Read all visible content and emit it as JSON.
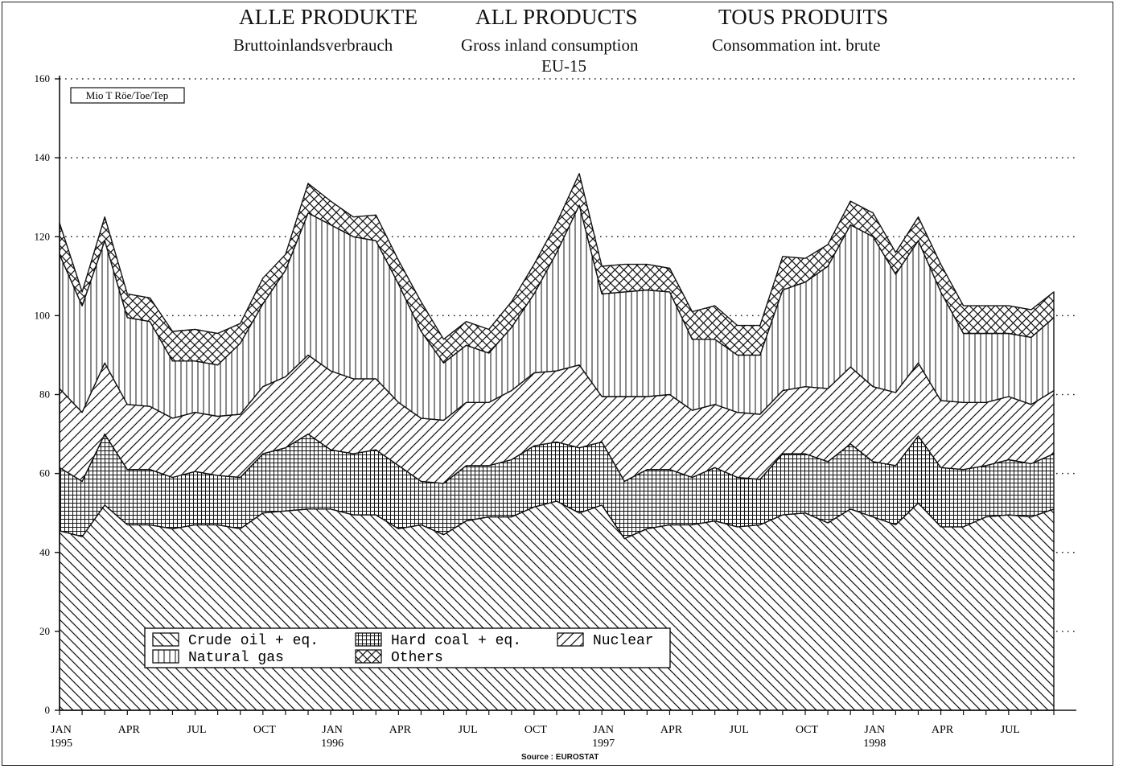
{
  "titles": {
    "de": "ALLE PRODUKTE",
    "en": "ALL PRODUCTS",
    "fr": "TOUS PRODUITS",
    "sub_de": "Bruttoinlandsverbrauch",
    "sub_en": "Gross inland consumption",
    "sub_fr": "Consommation int. brute",
    "region": "EU-15"
  },
  "source": "Source : EUROSTAT",
  "chart_data": {
    "type": "area",
    "stacked": true,
    "unit": "Mio T Röe/Toe/Tep",
    "ylim": [
      0,
      160
    ],
    "yticks": [
      0,
      20,
      40,
      60,
      80,
      100,
      120,
      140,
      160
    ],
    "ytick_labels": [
      "0",
      "20",
      "40",
      "60",
      "80",
      "100",
      "120",
      "140",
      "160"
    ],
    "grid": "dotted horizontal",
    "legend_position": "bottom-left",
    "x_range": [
      "1995-01",
      "1998-09"
    ],
    "x": [
      "1995-01",
      "1995-02",
      "1995-03",
      "1995-04",
      "1995-05",
      "1995-06",
      "1995-07",
      "1995-08",
      "1995-09",
      "1995-10",
      "1995-11",
      "1995-12",
      "1996-01",
      "1996-02",
      "1996-03",
      "1996-04",
      "1996-05",
      "1996-06",
      "1996-07",
      "1996-08",
      "1996-09",
      "1996-10",
      "1996-11",
      "1996-12",
      "1997-01",
      "1997-02",
      "1997-03",
      "1997-04",
      "1997-05",
      "1997-06",
      "1997-07",
      "1997-08",
      "1997-09",
      "1997-10",
      "1997-11",
      "1997-12",
      "1998-01",
      "1998-02",
      "1998-03",
      "1998-04",
      "1998-05",
      "1998-06",
      "1998-07",
      "1998-08",
      "1998-09"
    ],
    "xticks": [
      {
        "date": "1995-01",
        "month": "JAN",
        "year": "1995"
      },
      {
        "date": "1995-04",
        "month": "APR",
        "year": ""
      },
      {
        "date": "1995-07",
        "month": "JUL",
        "year": ""
      },
      {
        "date": "1995-10",
        "month": "OCT",
        "year": ""
      },
      {
        "date": "1996-01",
        "month": "JAN",
        "year": "1996"
      },
      {
        "date": "1996-04",
        "month": "APR",
        "year": ""
      },
      {
        "date": "1996-07",
        "month": "JUL",
        "year": ""
      },
      {
        "date": "1996-10",
        "month": "OCT",
        "year": ""
      },
      {
        "date": "1997-01",
        "month": "JAN",
        "year": "1997"
      },
      {
        "date": "1997-04",
        "month": "APR",
        "year": ""
      },
      {
        "date": "1997-07",
        "month": "JUL",
        "year": ""
      },
      {
        "date": "1997-10",
        "month": "OCT",
        "year": ""
      },
      {
        "date": "1998-01",
        "month": "JAN",
        "year": "1998"
      },
      {
        "date": "1998-04",
        "month": "APR",
        "year": ""
      },
      {
        "date": "1998-07",
        "month": "JUL",
        "year": ""
      }
    ],
    "series": [
      {
        "name": "Crude oil + eq.",
        "pattern": "hatch-back",
        "values": [
          45.5,
          44,
          52,
          47,
          47,
          46,
          47,
          47,
          46,
          50,
          50.5,
          51,
          51,
          49.5,
          49.5,
          46,
          47,
          44.5,
          48,
          49,
          49,
          51.5,
          53,
          50,
          52,
          43.5,
          46,
          47,
          47,
          48,
          46.5,
          47,
          49.5,
          50,
          47.5,
          51,
          49,
          47,
          52.5,
          46.5,
          46.5,
          49,
          49.5,
          49,
          51
        ]
      },
      {
        "name": "Hard coal + eq.",
        "pattern": "grid",
        "values": [
          16,
          14,
          18,
          14,
          14,
          13,
          13.5,
          12.5,
          13,
          15,
          16,
          19,
          15,
          15.5,
          16.5,
          16,
          11,
          13,
          14,
          13,
          14.5,
          15.5,
          15,
          16.5,
          16,
          14.5,
          15,
          14,
          12,
          13.5,
          12.5,
          11.5,
          15.5,
          15,
          15.5,
          16.5,
          14,
          15,
          17,
          15,
          14.5,
          13,
          14,
          13.5,
          14
        ]
      },
      {
        "name": "Nuclear",
        "pattern": "hatch-forward",
        "values": [
          20,
          17.5,
          18,
          16.5,
          16,
          15,
          15,
          15,
          16,
          17,
          18,
          20,
          20,
          19,
          18,
          16,
          16,
          16,
          16,
          16,
          17.5,
          18.5,
          18,
          21,
          11.5,
          21.5,
          18.5,
          19,
          17,
          16,
          16.5,
          16.5,
          16,
          17,
          18.5,
          19.5,
          19,
          18.5,
          18.5,
          17,
          17,
          16,
          16,
          15,
          16
        ]
      },
      {
        "name": "Natural gas",
        "pattern": "vertical",
        "values": [
          34,
          27,
          31,
          22,
          21.5,
          14.5,
          13,
          13,
          18,
          21,
          27,
          36,
          37,
          36,
          35,
          30,
          22,
          14.5,
          14.5,
          12.5,
          16,
          20,
          30,
          40.5,
          26,
          26.5,
          27,
          26,
          18,
          16.5,
          14.5,
          15,
          25.5,
          26.5,
          31,
          36,
          38,
          30,
          31,
          27.5,
          17.5,
          17.5,
          16,
          17,
          18.5
        ]
      },
      {
        "name": "Others",
        "pattern": "crosshatch",
        "values": [
          8,
          3.5,
          6,
          6,
          6,
          7.5,
          8,
          8,
          5,
          6.5,
          4,
          7.5,
          6,
          5,
          6.5,
          6,
          7.5,
          6,
          6,
          6,
          6.5,
          7.5,
          7.5,
          8,
          7,
          7,
          6.5,
          6,
          7,
          8.5,
          7.5,
          7.5,
          8.5,
          6,
          5.5,
          6,
          6,
          5.5,
          6,
          7,
          7,
          7,
          7,
          7,
          6.5
        ]
      }
    ]
  }
}
